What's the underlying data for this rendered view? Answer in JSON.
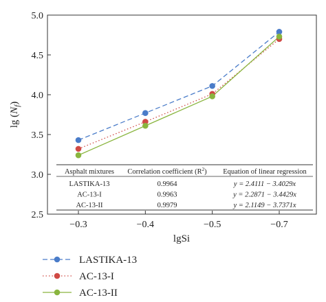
{
  "chart_data": {
    "type": "line",
    "title": "",
    "xlabel": "lgSi",
    "ylabel_parts": {
      "prefix": "lg (",
      "var": "N",
      "sub": "f",
      "suffix": ")"
    },
    "categories": [
      "−0.3",
      "−0.4",
      "−0.5",
      "−0.7"
    ],
    "ylim": [
      2.5,
      5.0
    ],
    "yticks": [
      "2.5",
      "3.0",
      "3.5",
      "4.0",
      "4.5",
      "5.0"
    ],
    "grid": false,
    "legend_position": "bottom-left-outside",
    "series": [
      {
        "name": "LASTIKA-13",
        "color": "#4a7cc9",
        "dash": "7,4",
        "values": [
          3.43,
          3.77,
          4.11,
          4.79
        ]
      },
      {
        "name": "AC-13-I",
        "color": "#d04a45",
        "dash": "1.5,3",
        "values": [
          3.32,
          3.66,
          4.01,
          4.7
        ]
      },
      {
        "name": "AC-13-II",
        "color": "#8ab53f",
        "dash": "",
        "values": [
          3.24,
          3.61,
          3.98,
          4.73
        ]
      }
    ],
    "table": {
      "headers": [
        "Asphalt mixtures",
        "Correlation coefficient (R",
        "2",
        ")",
        "Equation of linear regression"
      ],
      "rows": [
        {
          "mixture": "LASTIKA-13",
          "r2": "0.9964",
          "equation": "y = 2.4111 − 3.4029x"
        },
        {
          "mixture": "AC-13-I",
          "r2": "0.9963",
          "equation": "y = 2.2871 − 3.4429x"
        },
        {
          "mixture": "AC-13-II",
          "r2": "0.9979",
          "equation": "y = 2.1149 − 3.7371x"
        }
      ]
    }
  }
}
